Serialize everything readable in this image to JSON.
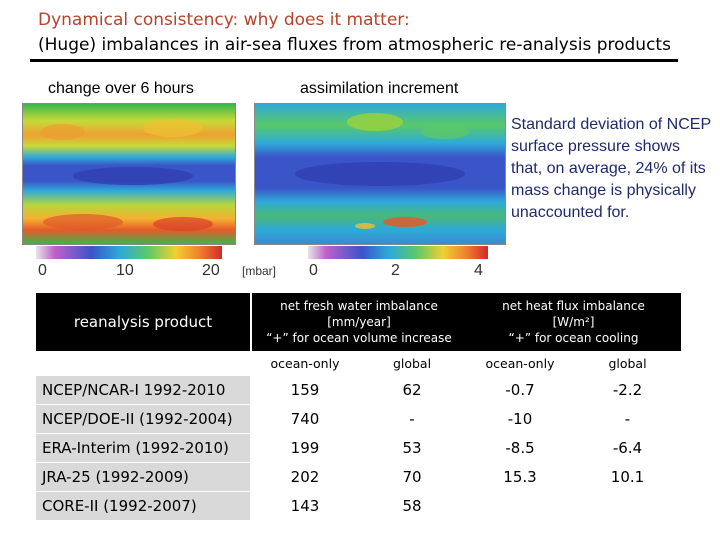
{
  "title_line1": "Dynamical consistency: why does it matter:",
  "title_line2": "(Huge) imbalances in air-sea fluxes from atmospheric re-analysis products",
  "maps": {
    "left_label": "change over 6 hours",
    "right_label": "assimilation increment",
    "left_ticks": [
      "0",
      "10",
      "20"
    ],
    "unit": "[mbar]",
    "right_ticks": [
      "0",
      "2",
      "4"
    ]
  },
  "note": "Standard deviation of NCEP surface pressure shows that, on average, 24% of its mass change is physically unaccounted for.",
  "table": {
    "product_header": "reanalysis product",
    "freshwater_header": [
      "net fresh water imbalance",
      "[mm/year]",
      "“+” for ocean volume increase"
    ],
    "heat_header": [
      "net heat flux imbalance",
      "[W/m²]",
      "“+” for ocean cooling"
    ],
    "subheaders": [
      "ocean-only",
      "global",
      "ocean-only",
      "global"
    ],
    "rows": [
      {
        "product": "NCEP/NCAR-I 1992-2010",
        "fw_ocean": "159",
        "fw_global": "62",
        "hf_ocean": "-0.7",
        "hf_global": "-2.2"
      },
      {
        "product": "NCEP/DOE-II (1992-2004)",
        "fw_ocean": "740",
        "fw_global": "-",
        "hf_ocean": "-10",
        "hf_global": "-"
      },
      {
        "product": "ERA-Interim (1992-2010)",
        "fw_ocean": "199",
        "fw_global": "53",
        "hf_ocean": "-8.5",
        "hf_global": "-6.4"
      },
      {
        "product": "JRA-25 (1992-2009)",
        "fw_ocean": "202",
        "fw_global": "70",
        "hf_ocean": "15.3",
        "hf_global": "10.1"
      },
      {
        "product": "CORE-II (1992-2007)",
        "fw_ocean": "143",
        "fw_global": "58",
        "hf_ocean": "",
        "hf_global": ""
      }
    ]
  },
  "colors": {
    "title_accent": "#b5432a",
    "note_text": "#1f2a6e",
    "header_bg": "#000000",
    "product_cell_bg": "#d9d9d9"
  }
}
